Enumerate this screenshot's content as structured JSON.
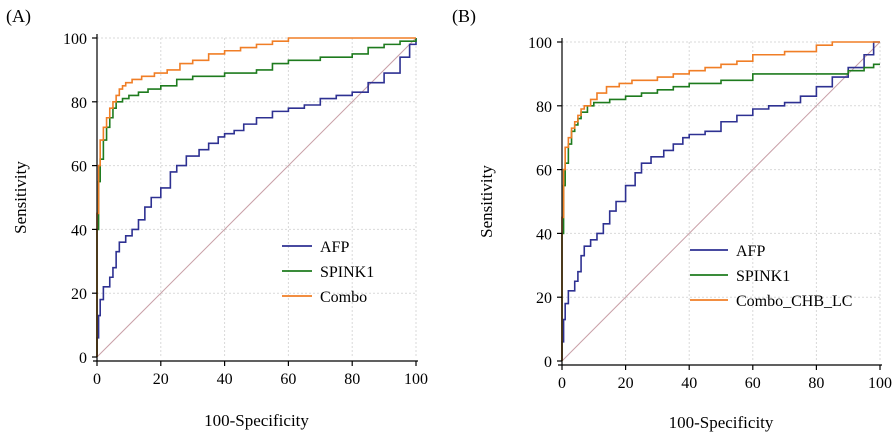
{
  "chart_data": [
    {
      "type": "line",
      "panel_label": "(A)",
      "xlabel": "100-Specificity",
      "ylabel": "Sensitivity",
      "xlim": [
        0,
        100
      ],
      "ylim": [
        0,
        100
      ],
      "xticks": [
        "0",
        "20",
        "40",
        "60",
        "80",
        "100"
      ],
      "yticks": [
        "0",
        "20",
        "40",
        "60",
        "80",
        "100"
      ],
      "grid": true,
      "legend_position": "bottom-right",
      "reference_line": true,
      "series": [
        {
          "name": "AFP",
          "color": "#2e3192",
          "points": [
            [
              0,
              0
            ],
            [
              0,
              6
            ],
            [
              0.5,
              13
            ],
            [
              1,
              18
            ],
            [
              2,
              22
            ],
            [
              4,
              25
            ],
            [
              5,
              28
            ],
            [
              6,
              33
            ],
            [
              7,
              36
            ],
            [
              9,
              38
            ],
            [
              11,
              40
            ],
            [
              13,
              43
            ],
            [
              15,
              47
            ],
            [
              17,
              50
            ],
            [
              20,
              53
            ],
            [
              23,
              58
            ],
            [
              25,
              60
            ],
            [
              28,
              63
            ],
            [
              32,
              65
            ],
            [
              35,
              67
            ],
            [
              38,
              69
            ],
            [
              40,
              70
            ],
            [
              43,
              71
            ],
            [
              46,
              73
            ],
            [
              50,
              75
            ],
            [
              55,
              77
            ],
            [
              60,
              78
            ],
            [
              65,
              79
            ],
            [
              70,
              81
            ],
            [
              75,
              82
            ],
            [
              80,
              83
            ],
            [
              85,
              86
            ],
            [
              90,
              89
            ],
            [
              95,
              94
            ],
            [
              98,
              98
            ],
            [
              100,
              100
            ]
          ]
        },
        {
          "name": "SPINK1",
          "color": "#1e7b1e",
          "points": [
            [
              0,
              0
            ],
            [
              0,
              40
            ],
            [
              0.5,
              55
            ],
            [
              1,
              62
            ],
            [
              2,
              68
            ],
            [
              3,
              72
            ],
            [
              4,
              75
            ],
            [
              5,
              78
            ],
            [
              6,
              80
            ],
            [
              8,
              81
            ],
            [
              10,
              82
            ],
            [
              13,
              83
            ],
            [
              16,
              84
            ],
            [
              20,
              85
            ],
            [
              25,
              87
            ],
            [
              30,
              88
            ],
            [
              40,
              89
            ],
            [
              50,
              90
            ],
            [
              55,
              92
            ],
            [
              60,
              93
            ],
            [
              70,
              94
            ],
            [
              80,
              95
            ],
            [
              85,
              97
            ],
            [
              90,
              98
            ],
            [
              95,
              99
            ],
            [
              100,
              100
            ]
          ]
        },
        {
          "name": "Combo",
          "color": "#f07e26",
          "points": [
            [
              0,
              0
            ],
            [
              0,
              45
            ],
            [
              0.5,
              60
            ],
            [
              1,
              68
            ],
            [
              2,
              72
            ],
            [
              3,
              75
            ],
            [
              4,
              78
            ],
            [
              5,
              80
            ],
            [
              6,
              82
            ],
            [
              7,
              84
            ],
            [
              8,
              85
            ],
            [
              9,
              86
            ],
            [
              11,
              87
            ],
            [
              14,
              88
            ],
            [
              18,
              89
            ],
            [
              22,
              90
            ],
            [
              26,
              92
            ],
            [
              30,
              93
            ],
            [
              35,
              95
            ],
            [
              40,
              96
            ],
            [
              45,
              97
            ],
            [
              50,
              98
            ],
            [
              55,
              99
            ],
            [
              60,
              100
            ],
            [
              100,
              100
            ]
          ]
        }
      ]
    },
    {
      "type": "line",
      "panel_label": "(B)",
      "xlabel": "100-Specificity",
      "ylabel": "Sensitivity",
      "xlim": [
        0,
        100
      ],
      "ylim": [
        0,
        100
      ],
      "xticks": [
        "0",
        "20",
        "40",
        "60",
        "80",
        "100"
      ],
      "yticks": [
        "0",
        "20",
        "40",
        "60",
        "80",
        "100"
      ],
      "grid": true,
      "legend_position": "bottom-right",
      "reference_line": true,
      "series": [
        {
          "name": "AFP",
          "color": "#2e3192",
          "points": [
            [
              0,
              0
            ],
            [
              0,
              6
            ],
            [
              0.5,
              13
            ],
            [
              1,
              18
            ],
            [
              2,
              22
            ],
            [
              4,
              25
            ],
            [
              5,
              28
            ],
            [
              6,
              33
            ],
            [
              7,
              36
            ],
            [
              9,
              38
            ],
            [
              11,
              40
            ],
            [
              13,
              43
            ],
            [
              15,
              47
            ],
            [
              17,
              50
            ],
            [
              20,
              55
            ],
            [
              23,
              59
            ],
            [
              25,
              62
            ],
            [
              28,
              64
            ],
            [
              32,
              66
            ],
            [
              35,
              68
            ],
            [
              38,
              70
            ],
            [
              40,
              71
            ],
            [
              45,
              72
            ],
            [
              50,
              75
            ],
            [
              55,
              77
            ],
            [
              60,
              79
            ],
            [
              65,
              80
            ],
            [
              70,
              81
            ],
            [
              75,
              83
            ],
            [
              80,
              86
            ],
            [
              85,
              89
            ],
            [
              90,
              92
            ],
            [
              95,
              96
            ],
            [
              98,
              100
            ],
            [
              100,
              100
            ]
          ]
        },
        {
          "name": "SPINK1",
          "color": "#1e7b1e",
          "points": [
            [
              0,
              0
            ],
            [
              0,
              40
            ],
            [
              0.5,
              55
            ],
            [
              1,
              62
            ],
            [
              2,
              68
            ],
            [
              3,
              72
            ],
            [
              4,
              74
            ],
            [
              5,
              76
            ],
            [
              6,
              78
            ],
            [
              8,
              80
            ],
            [
              10,
              81
            ],
            [
              15,
              82
            ],
            [
              20,
              83
            ],
            [
              25,
              84
            ],
            [
              30,
              85
            ],
            [
              35,
              86
            ],
            [
              40,
              87
            ],
            [
              50,
              88
            ],
            [
              60,
              90
            ],
            [
              80,
              90
            ],
            [
              90,
              91
            ],
            [
              95,
              92
            ],
            [
              98,
              93
            ],
            [
              100,
              93
            ]
          ]
        },
        {
          "name": "Combo_CHB_LC",
          "color": "#f07e26",
          "points": [
            [
              0,
              0
            ],
            [
              0,
              45
            ],
            [
              0.5,
              60
            ],
            [
              1,
              67
            ],
            [
              2,
              70
            ],
            [
              3,
              73
            ],
            [
              4,
              75
            ],
            [
              5,
              77
            ],
            [
              6,
              79
            ],
            [
              7,
              80
            ],
            [
              9,
              82
            ],
            [
              11,
              84
            ],
            [
              14,
              86
            ],
            [
              18,
              87
            ],
            [
              22,
              88
            ],
            [
              26,
              88
            ],
            [
              30,
              89
            ],
            [
              35,
              90
            ],
            [
              40,
              91
            ],
            [
              45,
              92
            ],
            [
              50,
              93
            ],
            [
              55,
              94
            ],
            [
              60,
              96
            ],
            [
              70,
              97
            ],
            [
              80,
              99
            ],
            [
              85,
              100
            ],
            [
              100,
              100
            ]
          ]
        }
      ]
    }
  ]
}
